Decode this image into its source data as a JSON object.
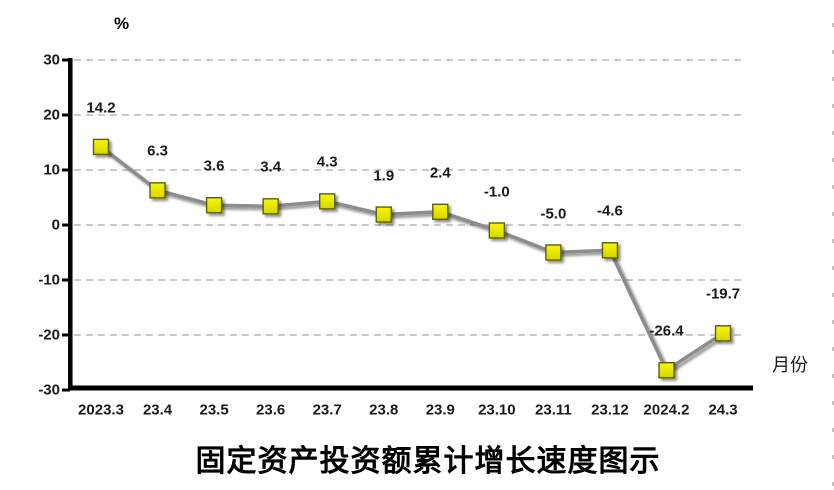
{
  "chart_data": {
    "type": "line",
    "title": "固定资产投资额累计增长速度图示",
    "unit_label": "%",
    "x_axis_title": "月份",
    "categories": [
      "2023.3",
      "23.4",
      "23.5",
      "23.6",
      "23.7",
      "23.8",
      "23.9",
      "23.10",
      "23.11",
      "23.12",
      "2024.2",
      "24.3"
    ],
    "values": [
      14.2,
      6.3,
      3.6,
      3.4,
      4.3,
      1.9,
      2.4,
      -1.0,
      -5.0,
      -4.6,
      -26.4,
      -19.7
    ],
    "point_labels": [
      "14.2",
      "6.3",
      "3.6",
      "3.4",
      "4.3",
      "1.9",
      "2.4",
      "-1.0",
      "-5.0",
      "-4.6",
      "-26.4",
      "-19.7"
    ],
    "ylim": [
      -30,
      30
    ],
    "ytick_values": [
      30,
      20,
      10,
      0,
      -10,
      -20,
      -30
    ],
    "ytick_labels": [
      "30",
      "20",
      "10",
      "0",
      "-10",
      "-20",
      "-30"
    ],
    "grid": "horizontal-dashed",
    "legend": "none",
    "colors": {
      "line": "#8c8c8c",
      "marker_fill": "#e7e700",
      "marker_fill_light": "#f8f806",
      "marker_fill_dark": "#d4d400",
      "marker_border": "#5e5e05",
      "gridline": "#b8b8b8",
      "axis": "#000000",
      "text": "#1a1a1a"
    }
  }
}
